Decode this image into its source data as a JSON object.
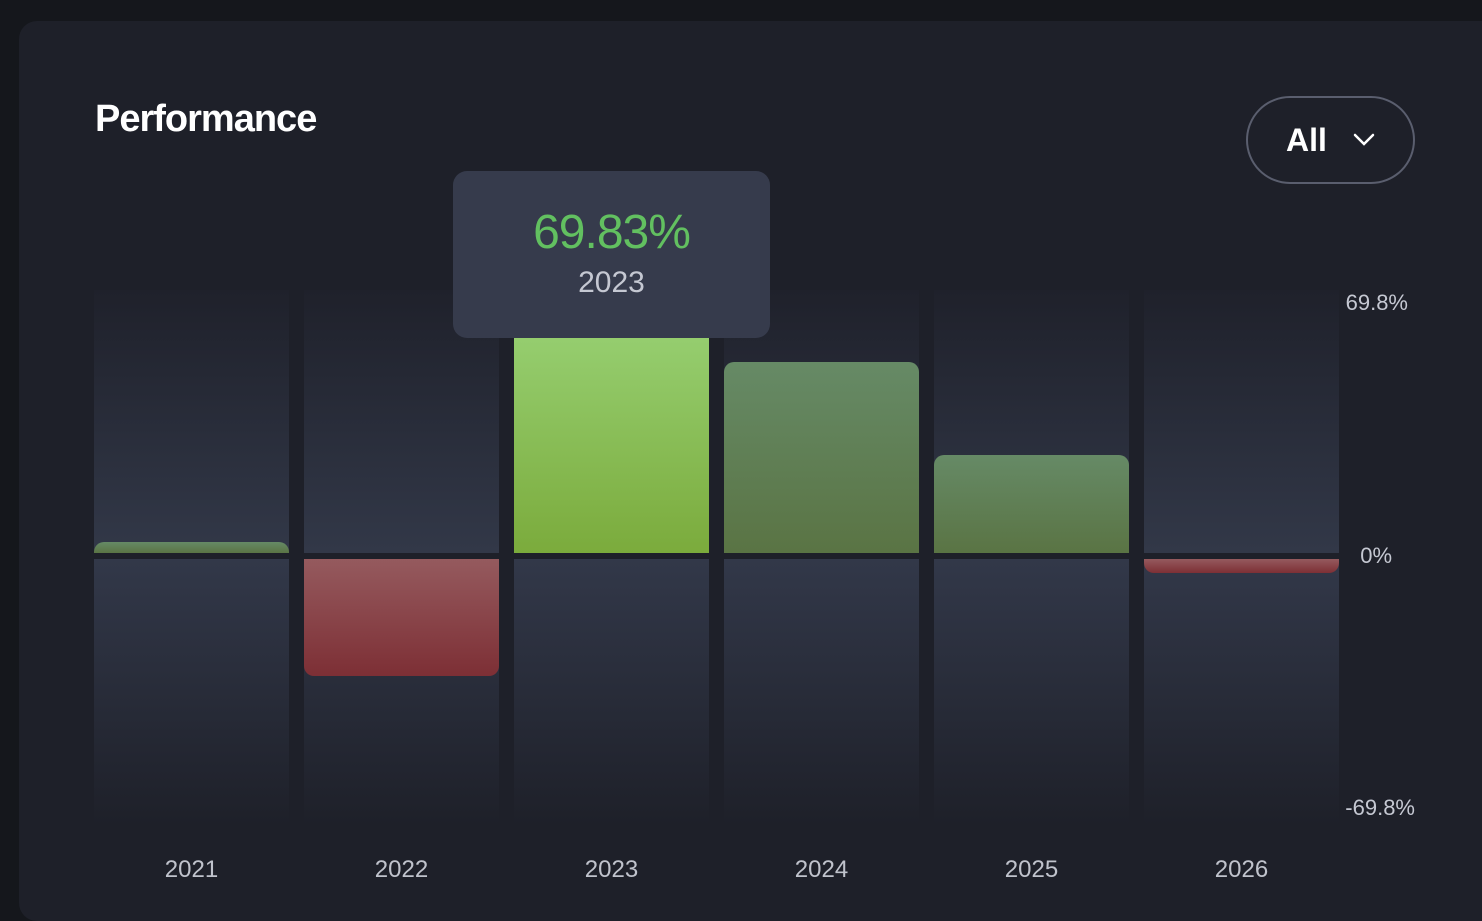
{
  "card": {
    "title": "Performance",
    "filter": {
      "selected": "All",
      "icon": "chevron-down-icon"
    }
  },
  "tooltip": {
    "value": "69.83%",
    "label": "2023"
  },
  "chart_data": {
    "type": "bar",
    "title": "Performance",
    "categories": [
      "2021",
      "2022",
      "2023",
      "2024",
      "2025",
      "2026"
    ],
    "values": [
      2.9,
      -30.8,
      69.83,
      50.7,
      26.0,
      -3.7
    ],
    "unit": "%",
    "ylim": [
      -69.8,
      69.8
    ],
    "y_ticks": [
      "69.8%",
      "0%",
      "-69.8%"
    ],
    "highlighted": "2023",
    "grid": false,
    "legend": "none",
    "colors": {
      "positive": "#5f7d4f",
      "positive_highlight": "#8bc25a",
      "negative": "#8a4247",
      "tooltip_value": "#62c060"
    }
  }
}
